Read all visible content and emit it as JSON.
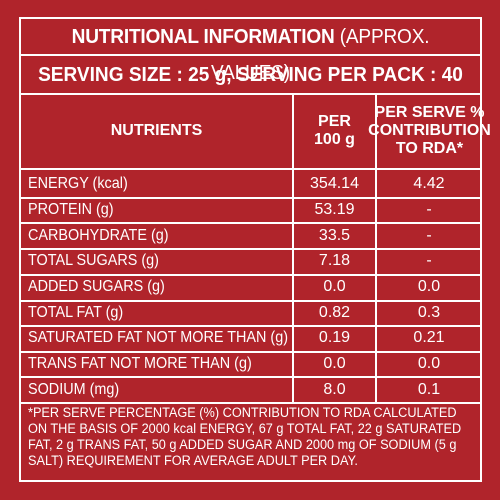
{
  "title_bold": "NUTRITIONAL INFORMATION",
  "title_light": "(APPROX. VALUES)",
  "serving_line": "SERVING SIZE : 25 g, SERVING PER PACK : 40",
  "headers": {
    "nutrients": "NUTRIENTS",
    "per_100g_line1": "PER",
    "per_100g_line2": "100 g",
    "rda_line1": "PER SERVE %",
    "rda_line2": "CONTRIBUTION",
    "rda_line3": "TO RDA*"
  },
  "rows": [
    {
      "name": "ENERGY (kcal)",
      "per_100g": "354.14",
      "rda": "4.42"
    },
    {
      "name": "PROTEIN (g)",
      "per_100g": "53.19",
      "rda": "-"
    },
    {
      "name": "CARBOHYDRATE (g)",
      "per_100g": "33.5",
      "rda": "-"
    },
    {
      "name": "TOTAL SUGARS (g)",
      "per_100g": "7.18",
      "rda": "-"
    },
    {
      "name": "ADDED SUGARS (g)",
      "per_100g": "0.0",
      "rda": "0.0"
    },
    {
      "name": "TOTAL FAT (g)",
      "per_100g": "0.82",
      "rda": "0.3"
    },
    {
      "name": "SATURATED FAT NOT MORE THAN (g)",
      "per_100g": "0.19",
      "rda": "0.21"
    },
    {
      "name": "TRANS FAT NOT MORE THAN (g)",
      "per_100g": "0.0",
      "rda": "0.0"
    },
    {
      "name": "SODIUM (mg)",
      "per_100g": "8.0",
      "rda": "0.1"
    }
  ],
  "footnote": "*PER SERVE PERCENTAGE (%) CONTRIBUTION TO RDA CALCULATED ON THE BASIS OF 2000 kcal ENERGY, 67 g TOTAL FAT, 22 g SATURATED FAT, 2 g TRANS FAT, 50 g ADDED SUGAR AND 2000 mg OF SODIUM (5 g SALT) REQUIREMENT FOR AVERAGE ADULT PER DAY.",
  "colors": {
    "background": "#b0242b",
    "text": "#ffffff",
    "rules": "#ffffff"
  }
}
